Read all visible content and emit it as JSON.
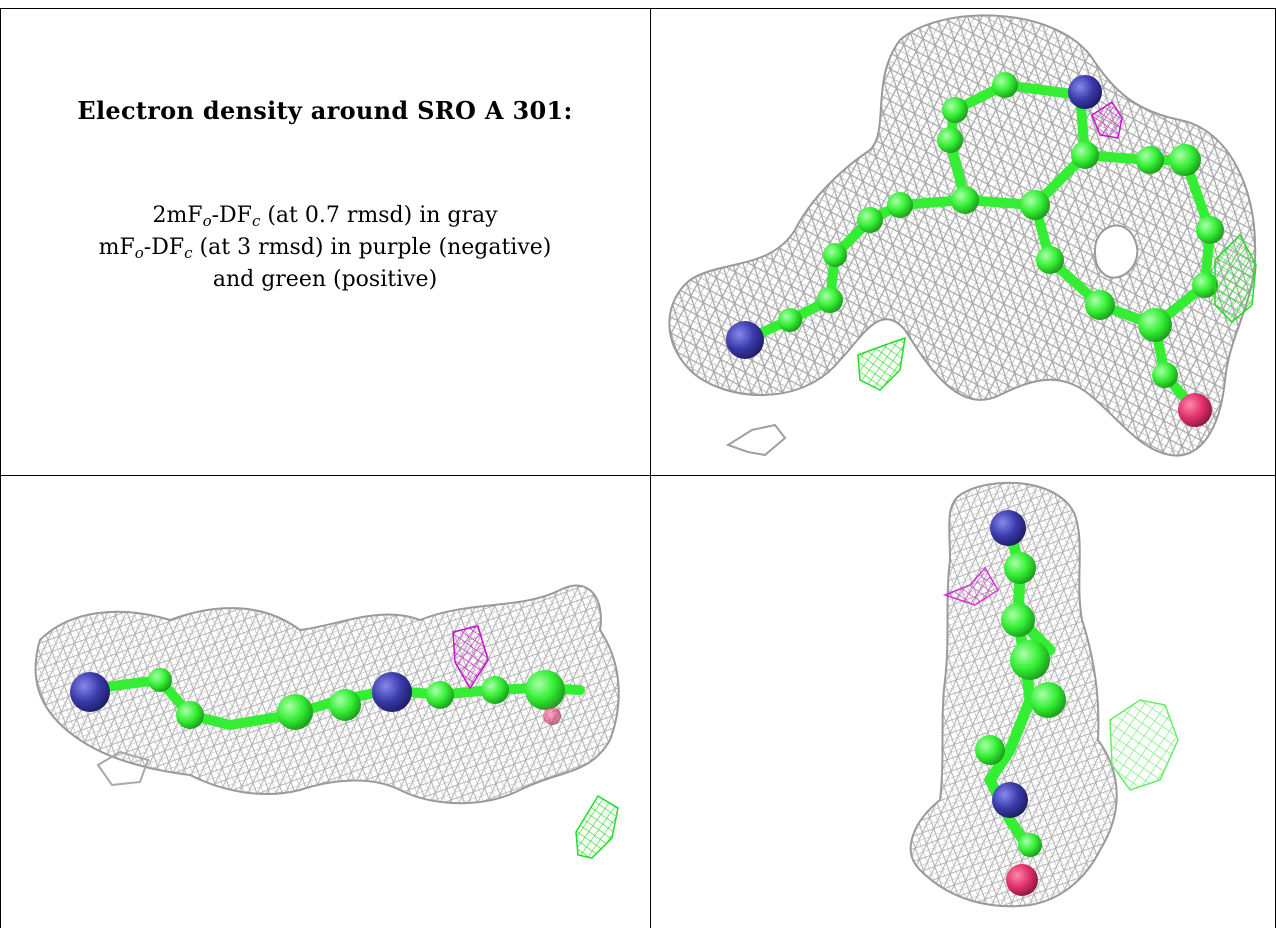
{
  "panel_text": {
    "title": "Electron density around SRO A 301:",
    "line1": {
      "prefix": "2mF",
      "sub1": "o",
      "mid": "-DF",
      "sub2": "c",
      "suffix": " (at 0.7 rmsd) in gray"
    },
    "line2": {
      "prefix": "mF",
      "sub1": "o",
      "mid": "-DF",
      "sub2": "c",
      "suffix": " (at 3 rmsd) in purple (negative)"
    },
    "line3": "and green (positive)"
  },
  "colors": {
    "mesh_2fofc": "#a8a8a8",
    "carbon": "#33ee33",
    "nitrogen": "#3a3aaa",
    "oxygen": "#e0306a",
    "negative_density": "#cc11cc",
    "positive_density": "#22dd22"
  },
  "views": [
    {
      "name": "top-right-view"
    },
    {
      "name": "bottom-left-view"
    },
    {
      "name": "bottom-right-view"
    }
  ]
}
